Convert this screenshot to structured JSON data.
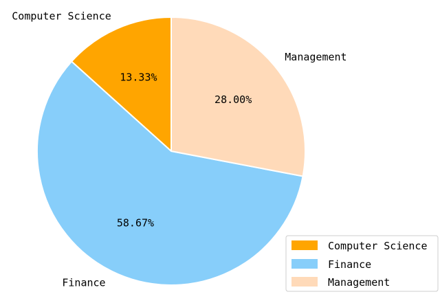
{
  "chart_data": {
    "type": "pie",
    "categories": [
      "Computer Science",
      "Finance",
      "Management"
    ],
    "values": [
      13.33,
      58.67,
      28.0
    ],
    "value_labels": [
      "13.33%",
      "58.67%",
      "28.00%"
    ],
    "colors": [
      "#FFA500",
      "#87CEFA",
      "#FFDAB9"
    ],
    "start_angle_deg": 90,
    "direction": "counterclockwise",
    "legend": {
      "placement": "bottom-right",
      "entries": [
        "Computer Science",
        "Finance",
        "Management"
      ]
    }
  }
}
